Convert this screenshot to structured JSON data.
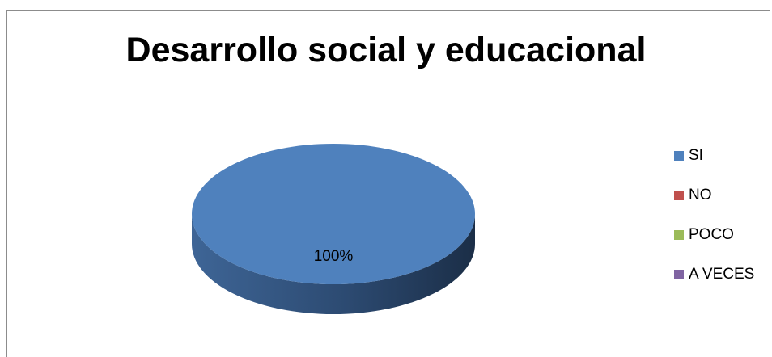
{
  "chart_data": {
    "type": "pie",
    "title": "Desarrollo social y educacional",
    "categories": [
      "SI",
      "NO",
      "POCO",
      "A VECES"
    ],
    "values": [
      100,
      0,
      0,
      0
    ],
    "data_labels": [
      "100%"
    ],
    "legend_position": "right",
    "colors": [
      "#4f81bd",
      "#c0504d",
      "#9bbb59",
      "#8064a2"
    ]
  }
}
